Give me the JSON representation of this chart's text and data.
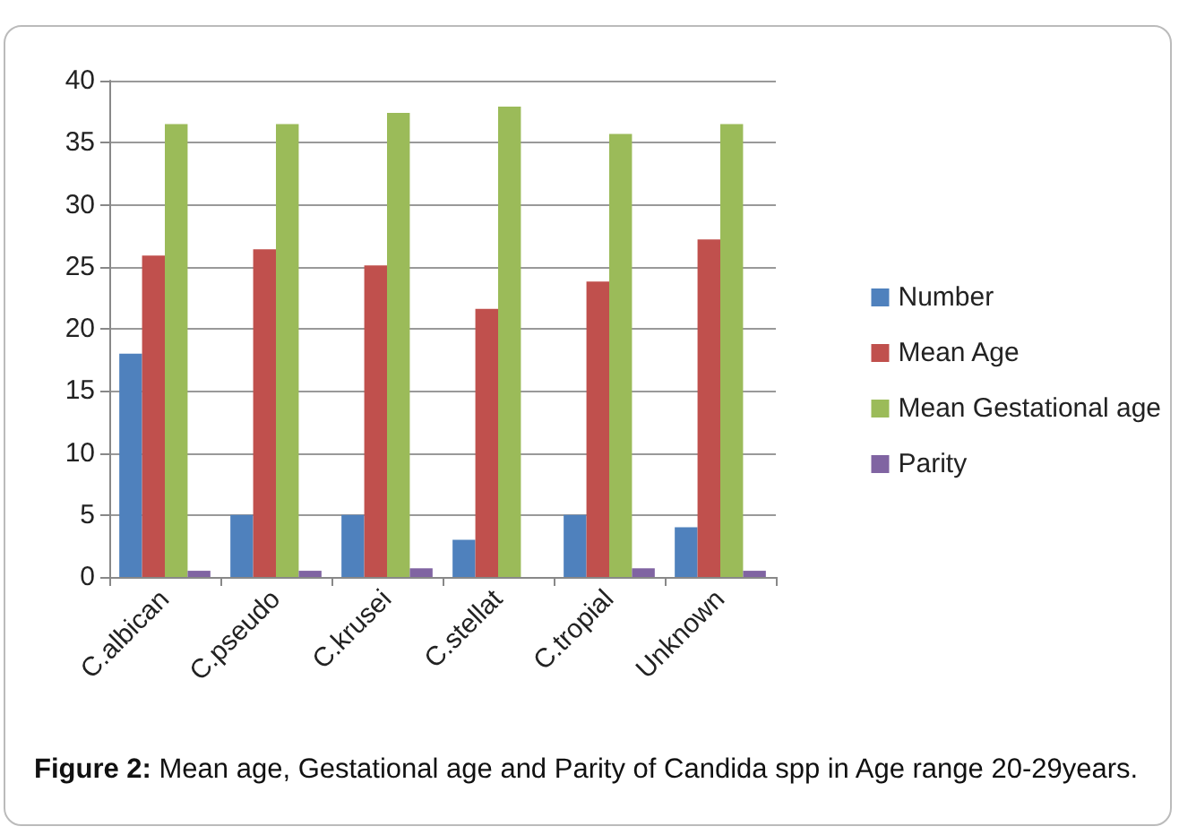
{
  "chart_data": {
    "type": "bar",
    "categories": [
      "C.albican",
      "C.pseudo",
      "C.krusei",
      "C.stellat",
      "C.tropial",
      "Unknown"
    ],
    "series": [
      {
        "name": "Number",
        "color": "#4f81bd",
        "values": [
          18,
          5,
          5,
          3,
          5,
          4
        ]
      },
      {
        "name": "Mean Age",
        "color": "#c0504d",
        "values": [
          25.9,
          26.4,
          25.1,
          21.6,
          23.8,
          27.2
        ]
      },
      {
        "name": "Mean Gestational age",
        "color": "#9bbb59",
        "values": [
          36.5,
          36.5,
          37.4,
          37.9,
          35.7,
          36.5
        ]
      },
      {
        "name": "Parity",
        "color": "#8064a2",
        "values": [
          0.5,
          0.5,
          0.7,
          0,
          0.7,
          0.5
        ]
      }
    ],
    "ylim": [
      0,
      40
    ],
    "yticks": [
      0,
      5,
      10,
      15,
      20,
      25,
      30,
      35,
      40
    ],
    "grid": "y",
    "legend": "right",
    "annotations": [
      "Figure 2: Mean age, Gestational age and Parity of Candida spp in Age range 20-29years."
    ]
  }
}
